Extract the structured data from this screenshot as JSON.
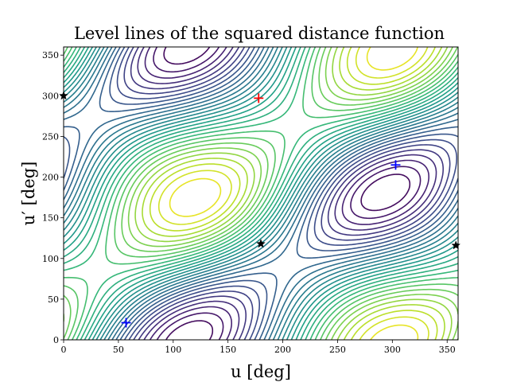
{
  "chart_data": {
    "type": "contour",
    "title": "Level lines of the squared distance function",
    "xlabel": "u [deg]",
    "ylabel": "u′ [deg]",
    "xlim": [
      0,
      360
    ],
    "ylim": [
      0,
      360
    ],
    "xticks": [
      0,
      50,
      100,
      150,
      200,
      250,
      300,
      350
    ],
    "yticks": [
      0,
      50,
      100,
      150,
      200,
      250,
      300,
      350
    ],
    "colormap": "viridis",
    "grid": false,
    "markers": [
      {
        "kind": "maximum",
        "symbol": "plus",
        "color": "#ff0000",
        "points": [
          [
            178,
            297
          ]
        ]
      },
      {
        "kind": "minimum",
        "symbol": "plus",
        "color": "#0000ff",
        "points": [
          [
            57,
            21
          ],
          [
            303,
            215
          ]
        ]
      },
      {
        "kind": "saddle",
        "symbol": "star",
        "color": "#000000",
        "points": [
          [
            0,
            300
          ],
          [
            180,
            118
          ],
          [
            358,
            116
          ]
        ]
      }
    ]
  }
}
